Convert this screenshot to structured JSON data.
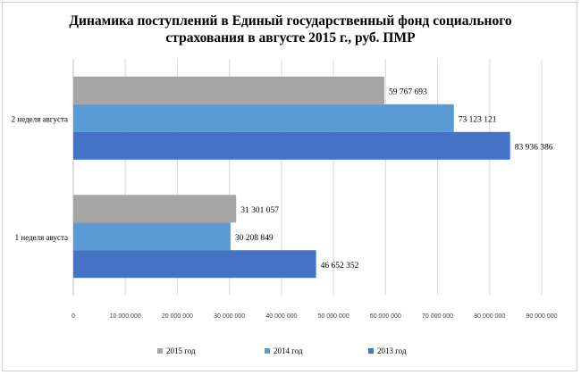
{
  "chart_data": {
    "type": "bar",
    "orientation": "horizontal",
    "title_lines": [
      "Динамика поступлений в Единый государственный фонд социального",
      "страхования  в августе 2015 г., руб. ПМР"
    ],
    "categories": [
      "2 неделя августа",
      "1 неделя авуста"
    ],
    "series": [
      {
        "name": "2015 год",
        "color": "#a5a5a5",
        "values": [
          59767693,
          31301057
        ],
        "labels": [
          "59 767 693",
          "31 301 057"
        ]
      },
      {
        "name": "2014 год",
        "color": "#5b9bd5",
        "values": [
          73123121,
          30208849
        ],
        "labels": [
          "73 123 121",
          "30 208 849"
        ]
      },
      {
        "name": "2013 год",
        "color": "#4472c4",
        "values": [
          83936386,
          46652352
        ],
        "labels": [
          "83 936 386",
          "46 652 352"
        ]
      }
    ],
    "xlim": [
      0,
      90000000
    ],
    "x_ticks": [
      0,
      10000000,
      20000000,
      30000000,
      40000000,
      50000000,
      60000000,
      70000000,
      80000000,
      90000000
    ],
    "x_tick_labels": [
      "0",
      "10 000 000",
      "20 000 000",
      "30 000 000",
      "40 000 000",
      "50 000 000",
      "60 000 000",
      "70 000 000",
      "80 000 000",
      "90 000 000"
    ],
    "grid": true,
    "legend_position": "bottom"
  }
}
